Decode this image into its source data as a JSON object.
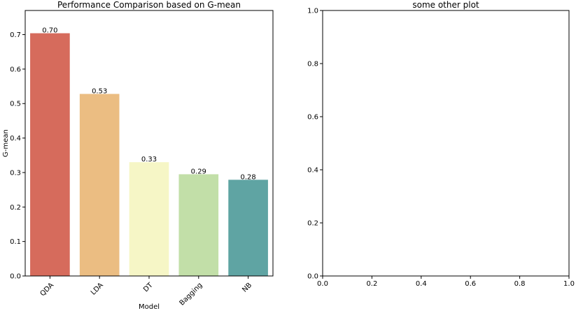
{
  "chart_data": [
    {
      "type": "bar",
      "title": "Performance Comparison based on G-mean",
      "xlabel": "Model",
      "ylabel": "G-mean",
      "categories": [
        "QDA",
        "LDA",
        "DT",
        "Bagging",
        "NB"
      ],
      "values": [
        0.704,
        0.528,
        0.33,
        0.295,
        0.279
      ],
      "value_labels": [
        "0.70",
        "0.53",
        "0.33",
        "0.29",
        "0.28"
      ],
      "colors": [
        "#d66b5c",
        "#ebbd82",
        "#f6f6c6",
        "#c2dfa8",
        "#5fa4a3"
      ],
      "ylim": [
        0,
        0.77
      ],
      "yticks": [
        0.0,
        0.1,
        0.2,
        0.3,
        0.4,
        0.5,
        0.6,
        0.7
      ],
      "ytick_labels": [
        "0.0",
        "0.1",
        "0.2",
        "0.3",
        "0.4",
        "0.5",
        "0.6",
        "0.7"
      ],
      "xtick_rotation": "45",
      "grid": false,
      "legend": "none"
    },
    {
      "type": "line",
      "title": "some other plot",
      "xlabel": "",
      "ylabel": "",
      "series": [],
      "xlim": [
        0.0,
        1.0
      ],
      "ylim": [
        0.0,
        1.0
      ],
      "xticks": [
        0.0,
        0.2,
        0.4,
        0.6,
        0.8,
        1.0
      ],
      "xtick_labels": [
        "0.0",
        "0.2",
        "0.4",
        "0.6",
        "0.8",
        "1.0"
      ],
      "yticks": [
        0.0,
        0.2,
        0.4,
        0.6,
        0.8,
        1.0
      ],
      "ytick_labels": [
        "0.0",
        "0.2",
        "0.4",
        "0.6",
        "0.8",
        "1.0"
      ],
      "grid": false,
      "legend": "none"
    }
  ]
}
